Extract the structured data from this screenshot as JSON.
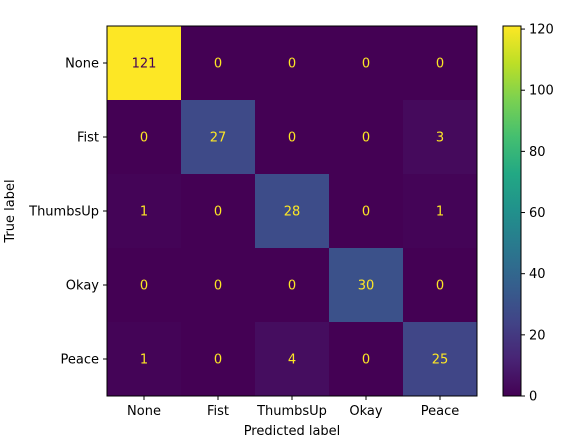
{
  "chart_data": {
    "type": "heatmap",
    "title": "",
    "xlabel": "Predicted label",
    "ylabel": "True label",
    "x_categories": [
      "None",
      "Fist",
      "ThumbsUp",
      "Okay",
      "Peace"
    ],
    "y_categories": [
      "None",
      "Fist",
      "ThumbsUp",
      "Okay",
      "Peace"
    ],
    "matrix": [
      [
        121,
        0,
        0,
        0,
        0
      ],
      [
        0,
        27,
        0,
        0,
        3
      ],
      [
        1,
        0,
        28,
        0,
        1
      ],
      [
        0,
        0,
        0,
        30,
        0
      ],
      [
        1,
        0,
        4,
        0,
        25
      ]
    ],
    "colormap": "viridis",
    "vmin": 0,
    "vmax": 121,
    "colorbar_ticks": [
      0,
      20,
      40,
      60,
      80,
      100,
      120
    ],
    "text_color_low": "#fde725",
    "text_color_high": "#440154"
  }
}
